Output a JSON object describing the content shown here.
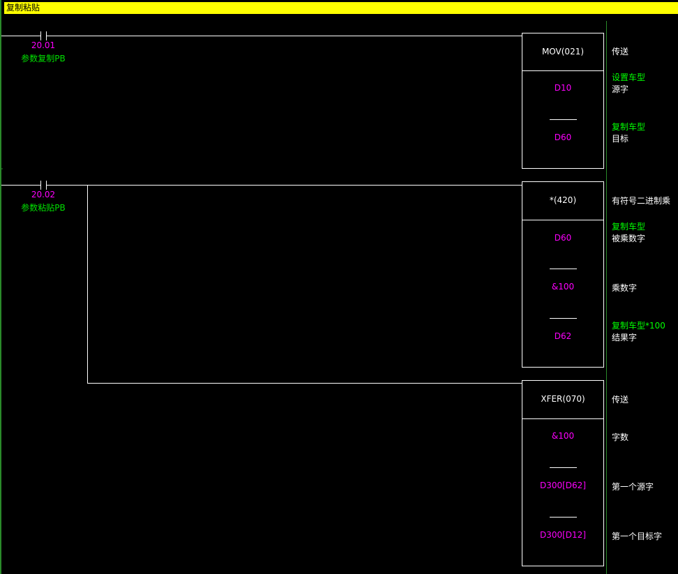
{
  "title": "复制粘贴",
  "colors": {
    "rail": "#2a8a2a",
    "address": "#ff00ff",
    "comment": "#00ff00",
    "title_bg": "#ffff00"
  },
  "rungs": [
    {
      "contact": {
        "address": "20.01",
        "comment": "参数复制PB"
      },
      "instructions": [
        {
          "name": "MOV(021)",
          "desc": "传送",
          "operands": [
            {
              "value": "D10",
              "comment": "设置车型",
              "desc": "源字"
            },
            {
              "value": "D60",
              "comment": "复制车型",
              "desc": "目标"
            }
          ]
        }
      ]
    },
    {
      "contact": {
        "address": "20.02",
        "comment": "参数粘贴PB"
      },
      "instructions": [
        {
          "name": "*(420)",
          "desc": "有符号二进制乘",
          "operands": [
            {
              "value": "D60",
              "comment": "复制车型",
              "desc": "被乘数字"
            },
            {
              "value": "&100",
              "comment": "",
              "desc": "乘数字"
            },
            {
              "value": "D62",
              "comment": "复制车型*100",
              "desc": "结果字"
            }
          ]
        },
        {
          "name": "XFER(070)",
          "desc": "传送",
          "operands": [
            {
              "value": "&100",
              "comment": "",
              "desc": "字数"
            },
            {
              "value": "D300[D62]",
              "comment": "",
              "desc": "第一个源字"
            },
            {
              "value": "D300[D12]",
              "comment": "",
              "desc": "第一个目标字"
            }
          ]
        }
      ]
    }
  ]
}
